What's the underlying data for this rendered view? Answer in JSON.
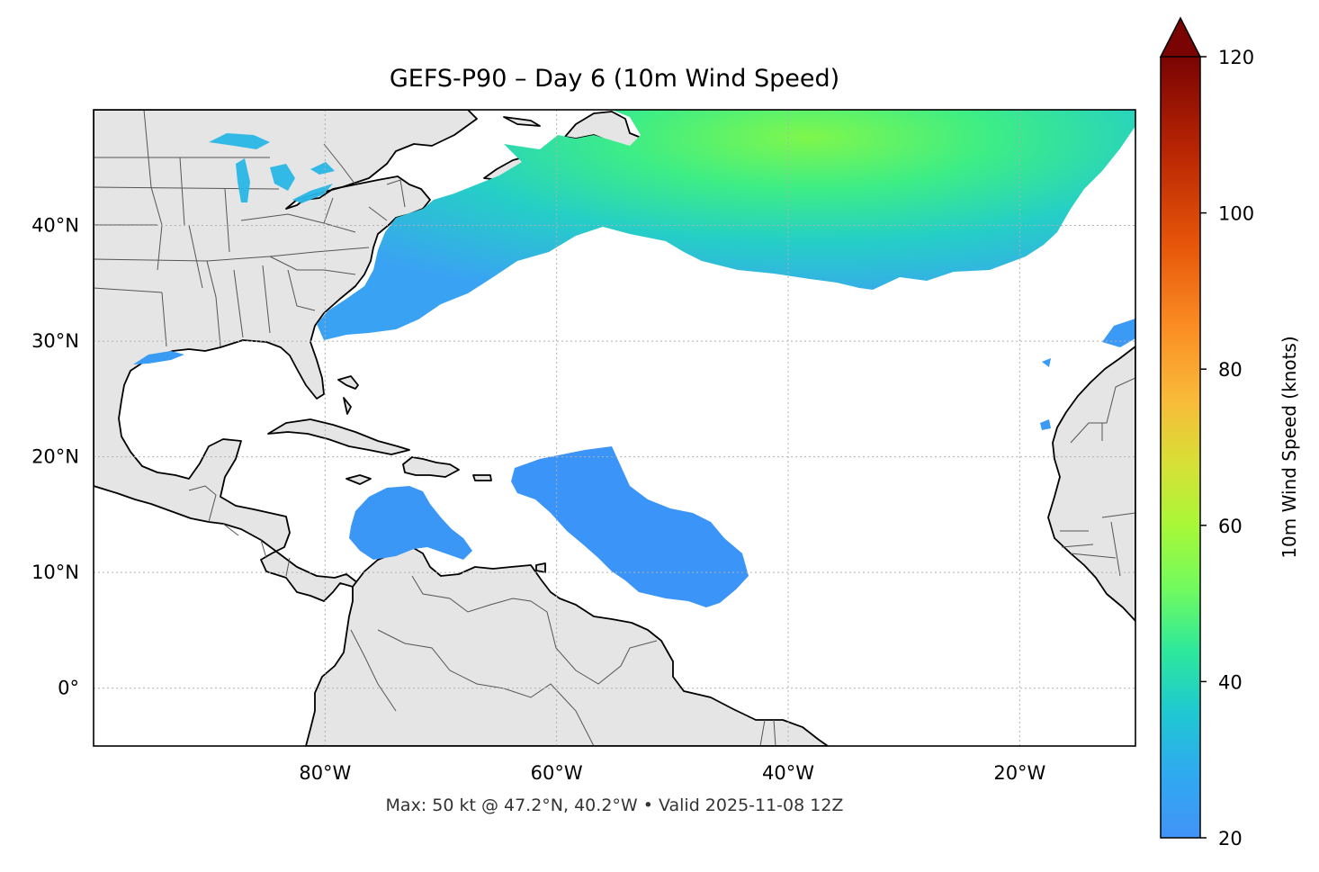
{
  "title": "GEFS-P90 – Day 6 (10m Wind Speed)",
  "footer": "Max: 50 kt @ 47.2°N, 40.2°W • Valid 2025-11-08 12Z",
  "map": {
    "projection": "PlateCarree",
    "lon_range": [
      -100,
      -10
    ],
    "lat_range": [
      -5,
      50
    ],
    "lat_ticks": [
      {
        "value": 40,
        "label": "40°N"
      },
      {
        "value": 30,
        "label": "30°N"
      },
      {
        "value": 20,
        "label": "20°N"
      },
      {
        "value": 10,
        "label": "10°N"
      },
      {
        "value": 0,
        "label": "0°"
      }
    ],
    "lon_ticks": [
      {
        "value": -80,
        "label": "80°W"
      },
      {
        "value": -60,
        "label": "60°W"
      },
      {
        "value": -40,
        "label": "40°W"
      },
      {
        "value": -20,
        "label": "20°W"
      }
    ],
    "gridlines": "dotted",
    "land_color": "#e5e5e5",
    "ocean_color": "#ffffff",
    "coastline_color": "#000000",
    "border_color": "#555555"
  },
  "colorbar": {
    "label": "10m Wind Speed (knots)",
    "min": 20,
    "max": 120,
    "extend": "max",
    "colormap": "turbo",
    "ticks": [
      {
        "value": 20,
        "label": "20"
      },
      {
        "value": 40,
        "label": "40"
      },
      {
        "value": 60,
        "label": "60"
      },
      {
        "value": 80,
        "label": "80"
      },
      {
        "value": 100,
        "label": "100"
      },
      {
        "value": 120,
        "label": "120"
      }
    ]
  },
  "wind_regions": [
    {
      "name": "North Atlantic",
      "approx_max_kt": 50,
      "peak_lat": 47.2,
      "peak_lon": -40.2
    },
    {
      "name": "Caribbean",
      "approx_kt": 25
    },
    {
      "name": "Tropical Atlantic",
      "approx_kt": 23
    },
    {
      "name": "Off Northwest Africa",
      "approx_kt": 24
    },
    {
      "name": "Northern Gulf of Mexico",
      "approx_kt": 23
    },
    {
      "name": "Great Lakes",
      "approx_kt": 26
    }
  ]
}
